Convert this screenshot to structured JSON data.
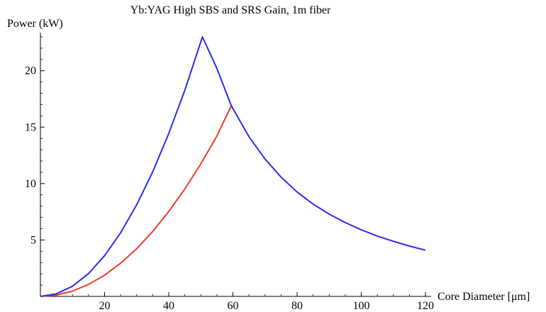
{
  "chart_data": {
    "type": "line",
    "title": "Yb:YAG High SBS and SRS Gain, 1m fiber",
    "xlabel": "Core Diameter [μm]",
    "ylabel": "Power (kW)",
    "xlim": [
      0,
      120
    ],
    "ylim": [
      0,
      23
    ],
    "xticks": [
      20,
      40,
      60,
      80,
      100,
      120
    ],
    "yticks": [
      5,
      10,
      15,
      20
    ],
    "grid": false,
    "legend": "none",
    "series": [
      {
        "color": "#ef3b2c",
        "points": [
          [
            0,
            0
          ],
          [
            5,
            0.12
          ],
          [
            10,
            0.47
          ],
          [
            15,
            1.06
          ],
          [
            20,
            1.88
          ],
          [
            25,
            2.94
          ],
          [
            30,
            4.23
          ],
          [
            35,
            5.76
          ],
          [
            40,
            7.52
          ],
          [
            45,
            9.52
          ],
          [
            50,
            11.75
          ],
          [
            55,
            14.22
          ],
          [
            59.5,
            16.9
          ]
        ]
      },
      {
        "color": "#2b2bef",
        "points": [
          [
            0,
            0
          ],
          [
            5,
            0.23
          ],
          [
            10,
            0.9
          ],
          [
            15,
            2.03
          ],
          [
            20,
            3.61
          ],
          [
            25,
            5.64
          ],
          [
            30,
            8.12
          ],
          [
            35,
            11.05
          ],
          [
            40,
            14.44
          ],
          [
            45,
            18.27
          ],
          [
            50.5,
            23.0
          ],
          [
            55,
            20.2
          ],
          [
            59.5,
            16.9
          ],
          [
            65,
            14.15
          ],
          [
            70,
            12.17
          ],
          [
            75,
            10.57
          ],
          [
            80,
            9.25
          ],
          [
            85,
            8.18
          ],
          [
            90,
            7.29
          ],
          [
            95,
            6.54
          ],
          [
            100,
            5.9
          ],
          [
            105,
            5.35
          ],
          [
            110,
            4.88
          ],
          [
            115,
            4.46
          ],
          [
            120,
            4.1
          ]
        ]
      }
    ]
  }
}
